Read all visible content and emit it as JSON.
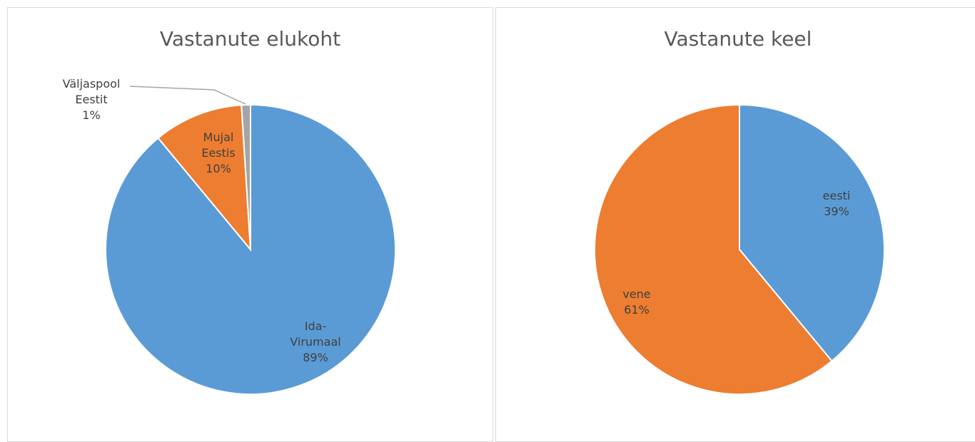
{
  "chart_data": [
    {
      "type": "pie",
      "title": "Vastanute elukoht",
      "categories": [
        "Ida-Virumaal",
        "Mujal Eestis",
        "Väljaspool Eestit"
      ],
      "values": [
        89,
        10,
        1
      ],
      "value_labels": [
        "89%",
        "10%",
        "1%"
      ],
      "colors": [
        "#5b9bd5",
        "#ed7d31",
        "#a5a5a5"
      ]
    },
    {
      "type": "pie",
      "title": "Vastanute keel",
      "categories": [
        "eesti",
        "vene"
      ],
      "values": [
        39,
        61
      ],
      "value_labels": [
        "39%",
        "61%"
      ],
      "colors": [
        "#5b9bd5",
        "#ed7d31"
      ]
    }
  ]
}
